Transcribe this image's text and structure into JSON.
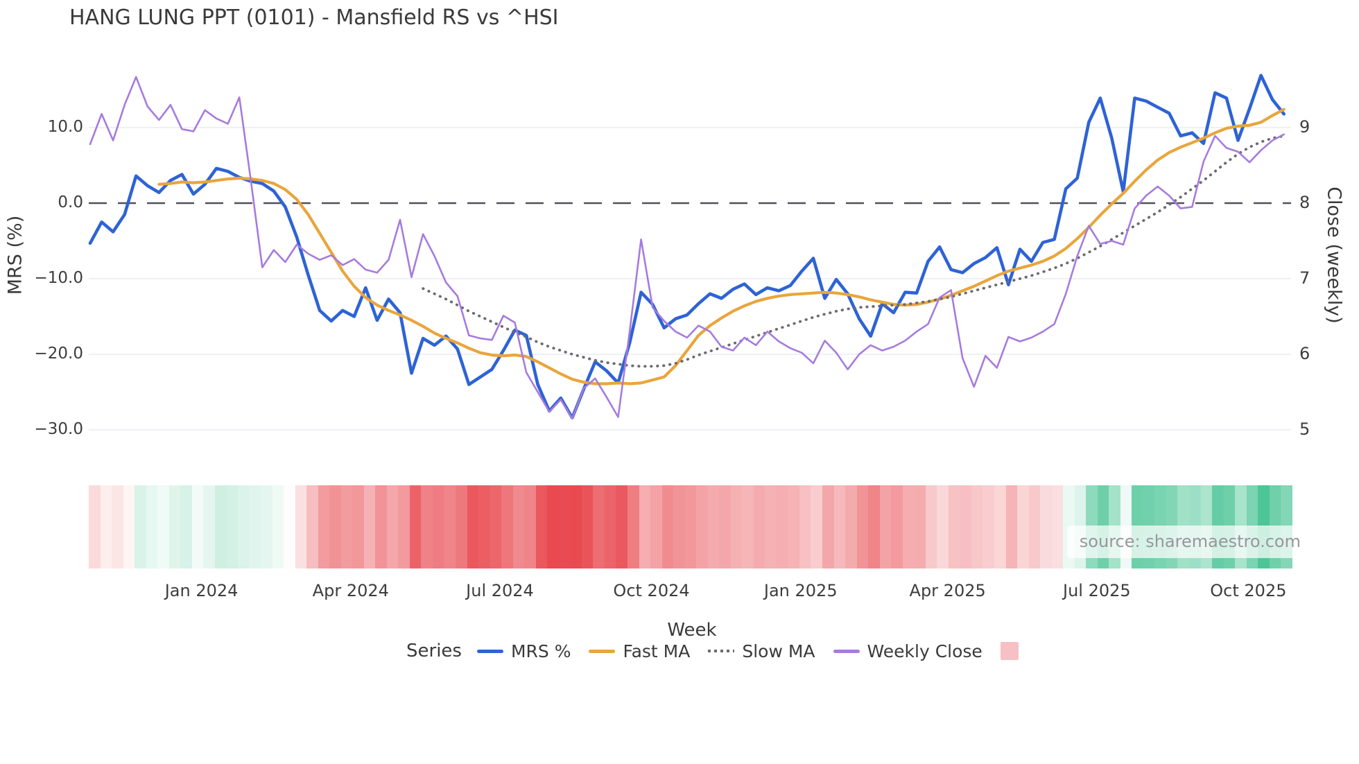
{
  "header": {
    "title": "HANG LUNG PPT (0101) - Mansfield RS vs ^HSI"
  },
  "watermark": {
    "text": "source: sharemaestro.com"
  },
  "axes": {
    "left": {
      "label": "MRS (%)",
      "ticks": [
        {
          "label": "10.0",
          "value": 10
        },
        {
          "label": "0.0",
          "value": 0
        },
        {
          "label": "−10.0",
          "value": -10
        },
        {
          "label": "−20.0",
          "value": -20
        },
        {
          "label": "−30.0",
          "value": -30
        }
      ]
    },
    "right": {
      "label": "Close (weekly)",
      "ticks": [
        {
          "label": "9",
          "value": 9
        },
        {
          "label": "8",
          "value": 8
        },
        {
          "label": "7",
          "value": 7
        },
        {
          "label": "6",
          "value": 6
        },
        {
          "label": "5",
          "value": 5
        }
      ]
    },
    "x": {
      "label": "Week",
      "ticks": [
        {
          "label": "Jan 2024",
          "week": 9.7
        },
        {
          "label": "Apr 2024",
          "week": 22.7
        },
        {
          "label": "Jul 2024",
          "week": 35.7
        },
        {
          "label": "Oct 2024",
          "week": 48.9
        },
        {
          "label": "Jan 2025",
          "week": 61.9
        },
        {
          "label": "Apr 2025",
          "week": 74.7
        },
        {
          "label": "Jul 2025",
          "week": 87.7
        },
        {
          "label": "Oct 2025",
          "week": 100.9
        }
      ]
    }
  },
  "legend": {
    "title": "Series",
    "items": [
      {
        "name": "MRS %",
        "marker": "line",
        "color": "#2E63D5"
      },
      {
        "name": "Fast MA",
        "marker": "line",
        "color": "#E9A53B"
      },
      {
        "name": "Slow MA",
        "marker": "dotted",
        "color": "#6A6A70"
      },
      {
        "name": "Weekly Close",
        "marker": "line",
        "color": "#A67BDE"
      },
      {
        "name": "",
        "marker": "square",
        "color": "#F6C0C4"
      }
    ]
  },
  "colors": {
    "grid": "#E8EBF1",
    "zero_line": "#50505A",
    "text": "#3A3A3A",
    "heatmap_positive": "#4CC596",
    "heatmap_negative": "#E84A50"
  },
  "chart_data": {
    "type": "line",
    "title": "HANG LUNG PPT (0101) - Mansfield RS vs ^HSI",
    "xlabel": "Week",
    "ylabel_left": "MRS (%)",
    "ylabel_right": "Close (weekly)",
    "n_points": 105,
    "x_unit": "weekly, late Oct 2023 - late Oct 2025",
    "ylim_left": [
      -33,
      18
    ],
    "yticks_left": [
      10.0,
      0.0,
      -10.0,
      -20.0,
      -30.0
    ],
    "yticks_right": [
      9,
      8,
      7,
      6,
      5
    ],
    "grid": "horizontal-light",
    "zero_line": {
      "axis": "left",
      "value": 0,
      "style": "dashed"
    },
    "legend_position": "bottom",
    "series": [
      {
        "name": "MRS %",
        "axis": "left",
        "color": "#2E63D5",
        "style": "solid",
        "width": 4.6,
        "values": [
          -5.3,
          -2.5,
          -3.8,
          -1.5,
          3.6,
          2.3,
          1.4,
          3.0,
          3.8,
          1.2,
          2.5,
          4.6,
          4.2,
          3.4,
          2.9,
          2.6,
          1.6,
          -0.5,
          -4.5,
          -9.5,
          -14.2,
          -15.6,
          -14.2,
          -15.0,
          -11.2,
          -15.5,
          -12.7,
          -14.5,
          -22.5,
          -17.9,
          -18.8,
          -17.6,
          -19.3,
          -24.0,
          -23.0,
          -22.0,
          -19.5,
          -16.8,
          -17.5,
          -24.0,
          -27.5,
          -25.8,
          -28.4,
          -24.6,
          -21.0,
          -22.2,
          -23.8,
          -18.5,
          -11.8,
          -13.4,
          -16.5,
          -15.3,
          -14.8,
          -13.3,
          -12.0,
          -12.6,
          -11.4,
          -10.7,
          -12.1,
          -11.2,
          -11.6,
          -10.9,
          -9.0,
          -7.3,
          -12.6,
          -10.1,
          -12.0,
          -15.3,
          -17.6,
          -13.3,
          -14.5,
          -11.8,
          -11.9,
          -7.7,
          -5.8,
          -8.8,
          -9.2,
          -8.0,
          -7.2,
          -5.9,
          -10.8,
          -6.1,
          -7.7,
          -5.2,
          -4.8,
          1.9,
          3.3,
          10.7,
          13.9,
          8.6,
          1.5,
          13.9,
          13.5,
          12.7,
          11.9,
          8.9,
          9.3,
          7.9,
          14.6,
          13.9,
          8.3,
          12.5,
          16.9,
          13.7,
          11.8
        ]
      },
      {
        "name": "Fast MA",
        "axis": "left",
        "color": "#E9A53B",
        "style": "solid",
        "width": 4.2,
        "values": [
          null,
          null,
          null,
          null,
          null,
          null,
          2.5,
          2.6,
          2.8,
          2.7,
          2.8,
          3.0,
          3.2,
          3.3,
          3.2,
          3.0,
          2.6,
          1.8,
          0.5,
          -1.5,
          -4.0,
          -6.5,
          -9.0,
          -11.0,
          -12.5,
          -13.5,
          -14.2,
          -14.8,
          -15.5,
          -16.3,
          -17.2,
          -17.9,
          -18.5,
          -19.2,
          -19.8,
          -20.1,
          -20.2,
          -20.1,
          -20.3,
          -21.0,
          -21.8,
          -22.6,
          -23.3,
          -23.7,
          -23.9,
          -23.9,
          -23.8,
          -23.9,
          -23.8,
          -23.4,
          -23.0,
          -21.5,
          -19.5,
          -17.5,
          -16.2,
          -15.2,
          -14.3,
          -13.6,
          -13.0,
          -12.6,
          -12.3,
          -12.1,
          -12.0,
          -11.9,
          -11.8,
          -11.9,
          -12.1,
          -12.4,
          -12.8,
          -13.1,
          -13.4,
          -13.5,
          -13.4,
          -13.1,
          -12.7,
          -12.2,
          -11.6,
          -11.0,
          -10.3,
          -9.6,
          -9.0,
          -8.6,
          -8.2,
          -7.7,
          -7.0,
          -6.0,
          -4.7,
          -3.2,
          -1.6,
          -0.1,
          1.3,
          2.9,
          4.4,
          5.7,
          6.7,
          7.4,
          8.0,
          8.6,
          9.3,
          9.9,
          10.2,
          10.3,
          10.7,
          11.6,
          12.4
        ]
      },
      {
        "name": "Slow MA",
        "axis": "left",
        "color": "#6A6A70",
        "style": "dotted",
        "width": 3.8,
        "values": [
          null,
          null,
          null,
          null,
          null,
          null,
          null,
          null,
          null,
          null,
          null,
          null,
          null,
          null,
          null,
          null,
          null,
          null,
          null,
          null,
          null,
          null,
          null,
          null,
          null,
          null,
          null,
          null,
          null,
          -11.3,
          -12.0,
          -12.7,
          -13.5,
          -14.3,
          -15.0,
          -15.7,
          -16.4,
          -17.1,
          -17.7,
          -18.4,
          -19.0,
          -19.5,
          -20.0,
          -20.4,
          -20.8,
          -21.1,
          -21.3,
          -21.5,
          -21.6,
          -21.6,
          -21.5,
          -21.2,
          -20.7,
          -20.1,
          -19.6,
          -19.1,
          -18.6,
          -18.1,
          -17.6,
          -17.1,
          -16.6,
          -16.1,
          -15.6,
          -15.1,
          -14.7,
          -14.3,
          -14.0,
          -13.8,
          -13.7,
          -13.6,
          -13.5,
          -13.4,
          -13.2,
          -13.0,
          -12.7,
          -12.4,
          -12.0,
          -11.6,
          -11.2,
          -10.8,
          -10.4,
          -10.0,
          -9.6,
          -9.1,
          -8.6,
          -8.0,
          -7.3,
          -6.5,
          -5.7,
          -4.8,
          -3.9,
          -3.0,
          -2.1,
          -1.2,
          -0.2,
          0.8,
          1.9,
          3.0,
          4.2,
          5.4,
          6.5,
          7.4,
          8.1,
          8.6,
          8.9
        ]
      },
      {
        "name": "Weekly Close",
        "axis": "right",
        "color": "#A67BDE",
        "style": "solid",
        "width": 2.6,
        "values": [
          8.78,
          9.18,
          8.83,
          9.3,
          9.67,
          9.28,
          9.1,
          9.3,
          8.98,
          8.95,
          9.23,
          9.12,
          9.05,
          9.4,
          8.3,
          7.15,
          7.38,
          7.22,
          7.45,
          7.33,
          7.25,
          7.31,
          7.18,
          7.26,
          7.12,
          7.08,
          7.25,
          7.78,
          7.02,
          7.59,
          7.3,
          6.95,
          6.77,
          6.25,
          6.21,
          6.19,
          6.51,
          6.42,
          5.76,
          5.5,
          5.24,
          5.4,
          5.15,
          5.55,
          5.68,
          5.43,
          5.17,
          6.3,
          7.52,
          6.62,
          6.44,
          6.3,
          6.22,
          6.38,
          6.3,
          6.1,
          6.05,
          6.22,
          6.12,
          6.3,
          6.17,
          6.08,
          6.02,
          5.88,
          6.18,
          6.02,
          5.8,
          6.0,
          6.12,
          6.05,
          6.1,
          6.18,
          6.3,
          6.4,
          6.75,
          6.85,
          5.95,
          5.57,
          5.98,
          5.82,
          6.23,
          6.17,
          6.22,
          6.3,
          6.4,
          6.8,
          7.3,
          7.7,
          7.46,
          7.5,
          7.45,
          7.93,
          8.1,
          8.22,
          8.1,
          7.93,
          7.95,
          8.55,
          8.89,
          8.73,
          8.68,
          8.54,
          8.7,
          8.83,
          8.91
        ]
      }
    ],
    "heatmap": {
      "source_series": "MRS %",
      "encoding": "red = negative MRS, green = positive MRS",
      "negative_color": "#E84A50",
      "positive_color": "#4CC596",
      "negative_max": 26,
      "positive_max": 17
    }
  }
}
